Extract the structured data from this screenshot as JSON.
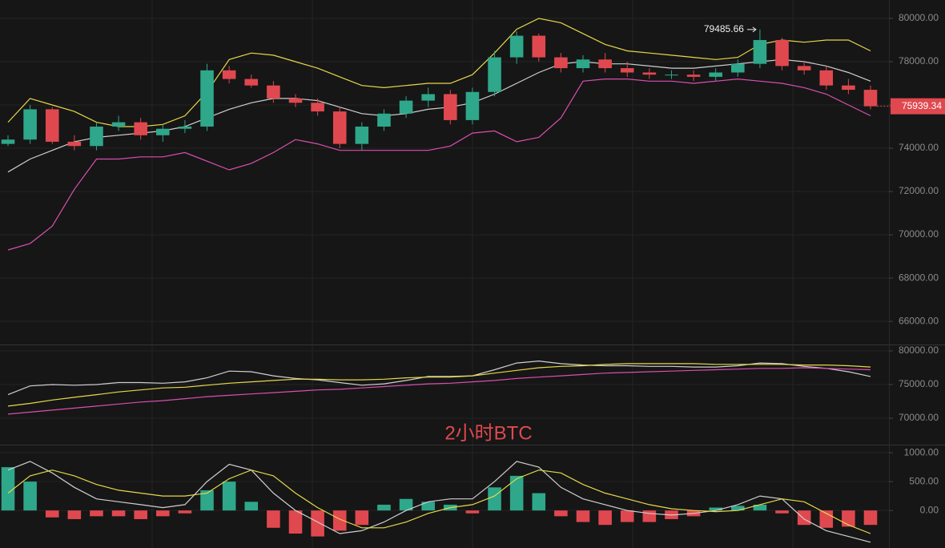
{
  "chart_data": [
    {
      "type": "candlestick",
      "title": "2小时BTC",
      "up_color": "#2ea78a",
      "down_color": "#e0484f",
      "grid": true,
      "ylim": [
        64930,
        80850
      ],
      "yticks": [
        {
          "value": 80000,
          "label": "80000.00"
        },
        {
          "value": 78000,
          "label": "78000.00"
        },
        {
          "value": 76000,
          "label": "76000.00"
        },
        {
          "value": 74000,
          "label": "74000.00"
        },
        {
          "value": 72000,
          "label": "72000.00"
        },
        {
          "value": 70000,
          "label": "70000.00"
        },
        {
          "value": 68000,
          "label": "68000.00"
        },
        {
          "value": 66000,
          "label": "66000.00"
        }
      ],
      "open": [
        74200,
        74400,
        75800,
        74300,
        74100,
        75000,
        75200,
        74600,
        74900,
        75000,
        77600,
        77200,
        76900,
        76300,
        76100,
        75700,
        74200,
        75000,
        75600,
        76200,
        76500,
        75300,
        76600,
        78200,
        79200,
        78200,
        77700,
        78100,
        77700,
        77500,
        77400,
        77400,
        77300,
        77500,
        77900,
        79000,
        77800,
        77600,
        76900,
        76700
      ],
      "high": [
        74600,
        76000,
        75900,
        74600,
        75200,
        75500,
        75400,
        75100,
        75300,
        77900,
        77800,
        77400,
        77100,
        76500,
        76300,
        75900,
        75200,
        75800,
        76400,
        76800,
        76700,
        76800,
        78500,
        79400,
        79300,
        78400,
        78300,
        78400,
        78000,
        77700,
        77600,
        77600,
        77700,
        78100,
        79485.66,
        79100,
        78000,
        77800,
        77200,
        76900
      ],
      "low": [
        74100,
        74200,
        74200,
        73900,
        73900,
        74800,
        74400,
        74300,
        74700,
        74800,
        77000,
        76800,
        76100,
        75900,
        75500,
        74000,
        73900,
        74800,
        75400,
        75900,
        75100,
        75100,
        76400,
        77900,
        78000,
        77500,
        77500,
        77500,
        77300,
        77200,
        77200,
        77100,
        77100,
        77300,
        77700,
        77600,
        77400,
        76700,
        76500,
        75800
      ],
      "close": [
        74400,
        75800,
        74300,
        74100,
        75000,
        75200,
        74600,
        74900,
        75000,
        77600,
        77200,
        76900,
        76300,
        76100,
        75700,
        74200,
        75000,
        75600,
        76200,
        76500,
        75300,
        76600,
        78200,
        79200,
        78200,
        77700,
        78100,
        77700,
        77500,
        77400,
        77400,
        77300,
        77500,
        77900,
        79000,
        77800,
        77600,
        76900,
        76700,
        75939.34
      ],
      "lines": [
        {
          "color": "#e6d84a",
          "values": [
            75200,
            76300,
            76000,
            75700,
            75200,
            75000,
            75000,
            75100,
            75500,
            76600,
            78100,
            78400,
            78300,
            78000,
            77700,
            77300,
            76900,
            76800,
            76900,
            77000,
            77000,
            77400,
            78400,
            79500,
            80000,
            79800,
            79300,
            78800,
            78500,
            78400,
            78300,
            78200,
            78100,
            78200,
            78800,
            79000,
            78900,
            79000,
            79000,
            78500
          ]
        },
        {
          "color": "#cfcfcf",
          "values": [
            72900,
            73500,
            73900,
            74300,
            74500,
            74600,
            74700,
            74800,
            75000,
            75400,
            75800,
            76100,
            76300,
            76300,
            76200,
            75900,
            75600,
            75500,
            75600,
            75800,
            75900,
            76100,
            76500,
            77000,
            77500,
            77900,
            78000,
            77900,
            77900,
            77800,
            77700,
            77700,
            77800,
            77900,
            78000,
            78100,
            78000,
            77800,
            77500,
            77100
          ]
        },
        {
          "color": "#d94fb0",
          "values": [
            69300,
            69600,
            70400,
            72100,
            73500,
            73500,
            73600,
            73600,
            73800,
            73400,
            73000,
            73300,
            73800,
            74400,
            74200,
            73900,
            73900,
            73900,
            73900,
            73900,
            74100,
            74700,
            74800,
            74300,
            74500,
            75400,
            77100,
            77200,
            77200,
            77100,
            77100,
            77000,
            77100,
            77200,
            77100,
            77000,
            76800,
            76500,
            76000,
            75500
          ]
        }
      ]
    },
    {
      "type": "line",
      "grid": true,
      "ylim": [
        66070,
        80950
      ],
      "yticks": [
        {
          "value": 80000,
          "label": "80000.00"
        },
        {
          "value": 75000,
          "label": "75000.00"
        },
        {
          "value": 70000,
          "label": "70000.00"
        }
      ],
      "lines": [
        {
          "color": "#cfcfcf",
          "values": [
            73500,
            74800,
            75000,
            74900,
            75000,
            75300,
            75300,
            75200,
            75400,
            76000,
            77000,
            76900,
            76300,
            75900,
            75700,
            75300,
            74900,
            75100,
            75600,
            76200,
            76200,
            76300,
            77200,
            78200,
            78500,
            78100,
            77900,
            77800,
            77800,
            77700,
            77700,
            77600,
            77600,
            77800,
            78200,
            78100,
            77700,
            77400,
            76900,
            76200
          ]
        },
        {
          "color": "#e6d84a",
          "values": [
            71800,
            72200,
            72700,
            73100,
            73500,
            73900,
            74200,
            74500,
            74600,
            74900,
            75200,
            75400,
            75600,
            75800,
            75800,
            75700,
            75700,
            75800,
            76000,
            76100,
            76100,
            76300,
            76700,
            77100,
            77500,
            77700,
            77800,
            78000,
            78100,
            78100,
            78100,
            78100,
            78000,
            78000,
            78000,
            78000,
            77900,
            77900,
            77800,
            77600
          ]
        },
        {
          "color": "#d94fb0",
          "values": [
            70600,
            70900,
            71200,
            71500,
            71800,
            72100,
            72400,
            72600,
            72900,
            73200,
            73400,
            73600,
            73800,
            74000,
            74200,
            74300,
            74500,
            74700,
            74900,
            75100,
            75200,
            75400,
            75600,
            75900,
            76100,
            76300,
            76500,
            76700,
            76800,
            76900,
            77000,
            77100,
            77200,
            77300,
            77400,
            77400,
            77500,
            77400,
            77300,
            77200
          ]
        }
      ]
    },
    {
      "type": "macd",
      "grid": true,
      "up_color": "#2ea78a",
      "down_color": "#e0484f",
      "ylim": [
        -650,
        1140
      ],
      "yticks": [
        {
          "value": 1000,
          "label": "1000.00"
        },
        {
          "value": 500,
          "label": "500.00"
        },
        {
          "value": 0,
          "label": "0.00"
        }
      ],
      "values": [
        750,
        500,
        -120,
        -150,
        -100,
        -100,
        -150,
        -100,
        -50,
        350,
        500,
        150,
        -300,
        -400,
        -450,
        -350,
        -250,
        100,
        200,
        150,
        100,
        -50,
        400,
        600,
        300,
        -100,
        -200,
        -250,
        -200,
        -200,
        -150,
        -100,
        50,
        80,
        100,
        -50,
        -250,
        -300,
        -280,
        -250
      ],
      "lines": [
        {
          "color": "#cfcfcf",
          "values": [
            700,
            850,
            650,
            400,
            200,
            150,
            100,
            50,
            100,
            500,
            800,
            700,
            300,
            0,
            -200,
            -400,
            -350,
            -200,
            0,
            150,
            200,
            200,
            500,
            850,
            750,
            400,
            200,
            100,
            0,
            -50,
            -80,
            -50,
            0,
            100,
            250,
            200,
            -150,
            -350,
            -450,
            -550
          ]
        },
        {
          "color": "#e6d84a",
          "values": [
            300,
            600,
            700,
            600,
            450,
            350,
            300,
            250,
            250,
            300,
            550,
            700,
            600,
            300,
            50,
            -150,
            -300,
            -300,
            -200,
            -50,
            50,
            100,
            250,
            550,
            700,
            650,
            450,
            300,
            200,
            100,
            30,
            0,
            -20,
            0,
            100,
            200,
            150,
            -50,
            -250,
            -400
          ]
        }
      ]
    }
  ]
}
